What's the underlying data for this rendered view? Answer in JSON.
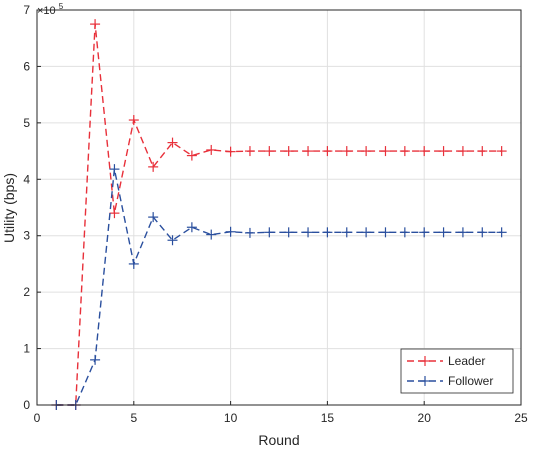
{
  "chart_data": {
    "type": "line",
    "xlabel": "Round",
    "ylabel": "Utility (bps)",
    "y_exponent_label": "×10",
    "y_exponent_power": "5",
    "xlim": [
      0,
      25
    ],
    "ylim": [
      0,
      7
    ],
    "xticks": [
      0,
      5,
      10,
      15,
      20,
      25
    ],
    "yticks": [
      0,
      1,
      2,
      3,
      4,
      5,
      6,
      7
    ],
    "y_scale_factor": 100000,
    "grid": true,
    "legend_position": "bottom-right",
    "x": [
      1,
      2,
      3,
      4,
      5,
      6,
      7,
      8,
      9,
      10,
      11,
      12,
      13,
      14,
      15,
      16,
      17,
      18,
      19,
      20,
      21,
      22,
      23,
      24
    ],
    "series": [
      {
        "name": "Leader",
        "color": "#e8303a",
        "values": [
          0,
          0,
          6.75,
          3.4,
          5.05,
          4.22,
          4.65,
          4.42,
          4.52,
          4.49,
          4.5,
          4.5,
          4.5,
          4.5,
          4.5,
          4.5,
          4.5,
          4.5,
          4.5,
          4.5,
          4.5,
          4.5,
          4.5,
          4.5
        ]
      },
      {
        "name": "Follower",
        "color": "#2a4f9e",
        "values": [
          0,
          0,
          0.8,
          4.18,
          2.5,
          3.33,
          2.92,
          3.15,
          3.02,
          3.07,
          3.05,
          3.06,
          3.06,
          3.06,
          3.06,
          3.06,
          3.06,
          3.06,
          3.06,
          3.06,
          3.06,
          3.06,
          3.06,
          3.06
        ]
      }
    ]
  }
}
